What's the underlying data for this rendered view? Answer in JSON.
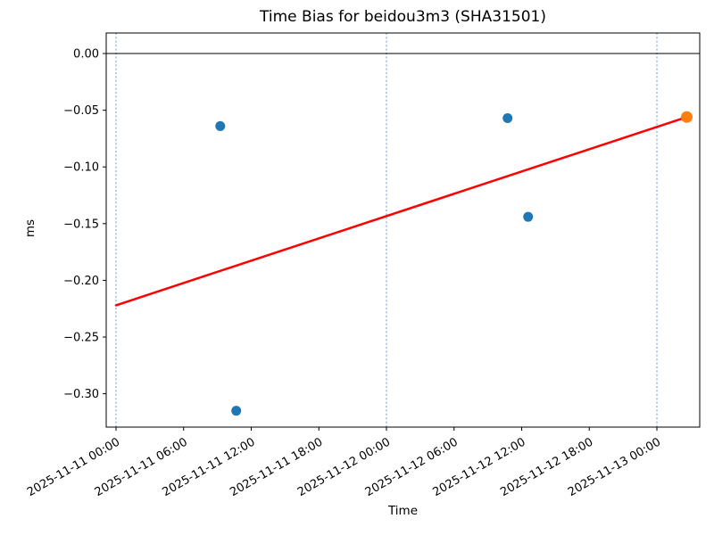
{
  "figure": {
    "title": "Time Bias for beidou3m3 (SHA31501)",
    "xlabel": "Time",
    "ylabel": "ms"
  },
  "chart_data": {
    "type": "scatter",
    "title": "Time Bias for beidou3m3 (SHA31501)",
    "xlabel": "Time",
    "ylabel": "ms",
    "x_base": "2025-11-11 00:00",
    "x_units": "hours since 2025-11-11 00:00",
    "xlim_hours": [
      -0.87,
      51.8
    ],
    "ylim": [
      -0.3294,
      0.0181
    ],
    "grid": false,
    "legend_position": "none",
    "x_ticks": [
      {
        "hours": 0,
        "label": "2025-11-11 00:00"
      },
      {
        "hours": 6,
        "label": "2025-11-11 06:00"
      },
      {
        "hours": 12,
        "label": "2025-11-11 12:00"
      },
      {
        "hours": 18,
        "label": "2025-11-11 18:00"
      },
      {
        "hours": 24,
        "label": "2025-11-12 00:00"
      },
      {
        "hours": 30,
        "label": "2025-11-12 06:00"
      },
      {
        "hours": 36,
        "label": "2025-11-12 12:00"
      },
      {
        "hours": 42,
        "label": "2025-11-12 18:00"
      },
      {
        "hours": 48,
        "label": "2025-11-13 00:00"
      }
    ],
    "y_ticks": [
      0,
      -0.05,
      -0.1,
      -0.15,
      -0.2,
      -0.25,
      -0.3
    ],
    "series": [
      {
        "name": "observed-bias",
        "marker": "circle",
        "color": "#1f77b4",
        "marker_radius": 5.5,
        "points": [
          {
            "time": "2025-11-11 09:15",
            "hours": 9.25,
            "ms": -0.064
          },
          {
            "time": "2025-11-11 10:40",
            "hours": 10.67,
            "ms": -0.315
          },
          {
            "time": "2025-11-12 10:45",
            "hours": 34.75,
            "ms": -0.057
          },
          {
            "time": "2025-11-12 12:35",
            "hours": 36.57,
            "ms": -0.144
          }
        ]
      },
      {
        "name": "latest-bias",
        "marker": "circle",
        "color": "#ff7f0e",
        "marker_radius": 6.5,
        "points": [
          {
            "time": "2025-11-13 02:40",
            "hours": 50.65,
            "ms": -0.056
          }
        ]
      }
    ],
    "trend_line": {
      "color": "#ff0000",
      "width": 2.5,
      "start": {
        "hours": 0,
        "ms": -0.222
      },
      "end": {
        "hours": 50.65,
        "ms": -0.056
      }
    },
    "zero_line": {
      "ms": 0,
      "color": "#000000",
      "width": 1
    },
    "day_boundary_lines": {
      "hours": [
        0,
        24,
        48
      ],
      "color": "#5b9bd5",
      "style": "dashed",
      "width": 1
    }
  }
}
